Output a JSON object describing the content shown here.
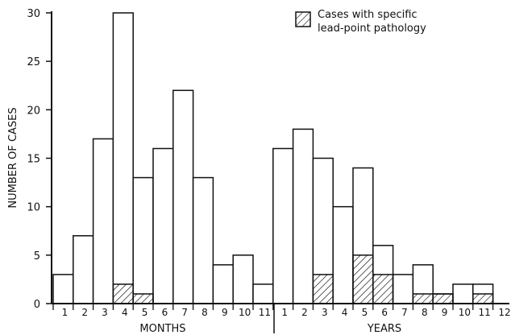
{
  "chart_data": {
    "type": "bar",
    "ylabel": "NUMBER OF CASES",
    "ylim": [
      0,
      30
    ],
    "yticks": [
      0,
      5,
      10,
      15,
      20,
      25,
      30
    ],
    "legend": {
      "label_line1": "Cases with specific",
      "label_line2": "lead-point pathology",
      "placement": "top-right"
    },
    "groups": [
      {
        "name": "MONTHS",
        "categories": [
          "1",
          "2",
          "3",
          "4",
          "5",
          "6",
          "7",
          "8",
          "9",
          "10",
          "11"
        ],
        "total": [
          3,
          7,
          17,
          30,
          13,
          16,
          22,
          13,
          4,
          5,
          2
        ],
        "lead_point": [
          0,
          0,
          0,
          2,
          1,
          0,
          0,
          0,
          0,
          0,
          0
        ]
      },
      {
        "name": "YEARS",
        "categories": [
          "1",
          "2",
          "3",
          "4",
          "5",
          "6",
          "7",
          "8",
          "9",
          "10",
          "11",
          "12"
        ],
        "total": [
          16,
          18,
          15,
          10,
          14,
          6,
          3,
          4,
          1,
          2,
          2,
          0
        ],
        "lead_point": [
          0,
          0,
          3,
          0,
          5,
          3,
          0,
          1,
          1,
          0,
          1,
          0
        ]
      }
    ],
    "series": [
      {
        "name": "Cases with specific lead-point pathology",
        "fill": "hatched"
      }
    ]
  }
}
